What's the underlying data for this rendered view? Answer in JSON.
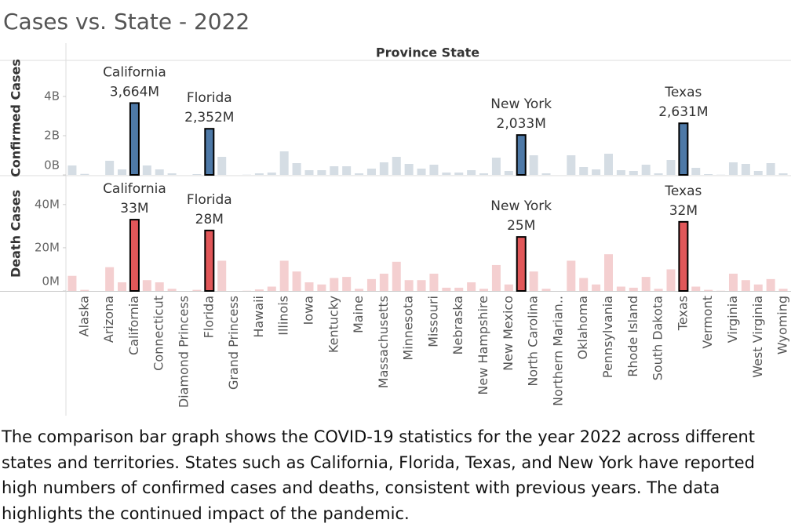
{
  "chart_data": {
    "type": "bar",
    "title": "Cases vs. State - 2022",
    "x_label": "Province State",
    "categories": [
      null,
      "Alaska",
      null,
      "Arizona",
      null,
      "California",
      null,
      "Connecticut",
      null,
      "Diamond Princess",
      null,
      "Florida",
      null,
      "Grand Princess",
      null,
      "Hawaii",
      null,
      "Illinois",
      null,
      "Iowa",
      null,
      "Kentucky",
      null,
      "Maine",
      null,
      "Massachusetts",
      null,
      "Minnesota",
      null,
      "Missouri",
      null,
      "Nebraska",
      null,
      "New Hampshire",
      null,
      "New Mexico",
      null,
      "North Carolina",
      null,
      "Northern Marian..",
      null,
      "Oklahoma",
      null,
      "Pennsylvania",
      null,
      "Rhode Island",
      null,
      "South Dakota",
      null,
      "Texas",
      null,
      "Vermont",
      null,
      "Virginia",
      null,
      "West Virginia",
      null,
      "Wyoming"
    ],
    "panels": [
      {
        "y_label": "Confirmed Cases",
        "color": "#d5dde4",
        "highlight_color": "#4e79a7",
        "ylim": [
          0,
          5800000000
        ],
        "yticks": [
          {
            "value": 0,
            "label": "0B"
          },
          {
            "value": 2000000000,
            "label": "2B"
          },
          {
            "value": 4000000000,
            "label": "4B"
          }
        ],
        "values": [
          480000000,
          50000000,
          0,
          720000000,
          280000000,
          3664000000,
          480000000,
          280000000,
          80000000,
          0,
          40000000,
          2352000000,
          920000000,
          0,
          10000000,
          80000000,
          120000000,
          1200000000,
          600000000,
          240000000,
          240000000,
          440000000,
          440000000,
          80000000,
          320000000,
          640000000,
          920000000,
          560000000,
          320000000,
          520000000,
          120000000,
          120000000,
          240000000,
          80000000,
          880000000,
          200000000,
          2033000000,
          1000000000,
          80000000,
          0,
          1000000000,
          400000000,
          280000000,
          1080000000,
          240000000,
          200000000,
          520000000,
          80000000,
          760000000,
          2631000000,
          360000000,
          40000000,
          10000000,
          640000000,
          560000000,
          200000000,
          600000000,
          80000000
        ],
        "highlight_names": [
          null,
          null,
          null,
          null,
          null,
          "California",
          null,
          null,
          null,
          null,
          null,
          "Florida",
          null,
          null,
          null,
          null,
          null,
          null,
          null,
          null,
          null,
          null,
          null,
          null,
          null,
          null,
          null,
          null,
          null,
          null,
          null,
          null,
          null,
          null,
          null,
          null,
          "New York",
          null,
          null,
          null,
          null,
          null,
          null,
          null,
          null,
          null,
          null,
          null,
          null,
          "Texas",
          null,
          null,
          null,
          null,
          null,
          null,
          null,
          null
        ],
        "value_labels": [
          null,
          null,
          null,
          null,
          null,
          "3,664M",
          null,
          null,
          null,
          null,
          null,
          "2,352M",
          null,
          null,
          null,
          null,
          null,
          null,
          null,
          null,
          null,
          null,
          null,
          null,
          null,
          null,
          null,
          null,
          null,
          null,
          null,
          null,
          null,
          null,
          null,
          null,
          "2,033M",
          null,
          null,
          null,
          null,
          null,
          null,
          null,
          null,
          null,
          null,
          null,
          null,
          "2,631M",
          null,
          null,
          null,
          null,
          null,
          null,
          null,
          null
        ]
      },
      {
        "y_label": "Death Cases",
        "color": "#f4cfd0",
        "highlight_color": "#e15759",
        "ylim": [
          0,
          53000000
        ],
        "yticks": [
          {
            "value": 0,
            "label": "0M"
          },
          {
            "value": 20000000,
            "label": "20M"
          },
          {
            "value": 40000000,
            "label": "40M"
          }
        ],
        "values": [
          7000000,
          500000,
          0,
          11000000,
          4000000,
          33000000,
          5000000,
          4000000,
          1000000,
          0,
          500000,
          28000000,
          14000000,
          0,
          100000,
          700000,
          2000000,
          14000000,
          9000000,
          4000000,
          3000000,
          6000000,
          6500000,
          1000000,
          5500000,
          8000000,
          13500000,
          5000000,
          5000000,
          8000000,
          1500000,
          1500000,
          4000000,
          1000000,
          12000000,
          3000000,
          25000000,
          9000000,
          1000000,
          0,
          14000000,
          6000000,
          3000000,
          17000000,
          2000000,
          1500000,
          6500000,
          1000000,
          10000000,
          32000000,
          2000000,
          500000,
          100000,
          8000000,
          5000000,
          3000000,
          5500000,
          1000000
        ],
        "highlight_names": [
          null,
          null,
          null,
          null,
          null,
          "California",
          null,
          null,
          null,
          null,
          null,
          "Florida",
          null,
          null,
          null,
          null,
          null,
          null,
          null,
          null,
          null,
          null,
          null,
          null,
          null,
          null,
          null,
          null,
          null,
          null,
          null,
          null,
          null,
          null,
          null,
          null,
          "New York",
          null,
          null,
          null,
          null,
          null,
          null,
          null,
          null,
          null,
          null,
          null,
          null,
          "Texas",
          null,
          null,
          null,
          null,
          null,
          null,
          null,
          null
        ],
        "value_labels": [
          null,
          null,
          null,
          null,
          null,
          "33M",
          null,
          null,
          null,
          null,
          null,
          "28M",
          null,
          null,
          null,
          null,
          null,
          null,
          null,
          null,
          null,
          null,
          null,
          null,
          null,
          null,
          null,
          null,
          null,
          null,
          null,
          null,
          null,
          null,
          null,
          null,
          "25M",
          null,
          null,
          null,
          null,
          null,
          null,
          null,
          null,
          null,
          null,
          null,
          null,
          "32M",
          null,
          null,
          null,
          null,
          null,
          null,
          null,
          null
        ]
      }
    ],
    "caption": "The comparison bar graph shows the COVID-19 statistics for the year 2022 across different states and territories. States such as California, Florida, Texas, and New York have reported high numbers of confirmed cases and deaths, consistent with previous years. The data highlights the continued impact of the pandemic."
  }
}
